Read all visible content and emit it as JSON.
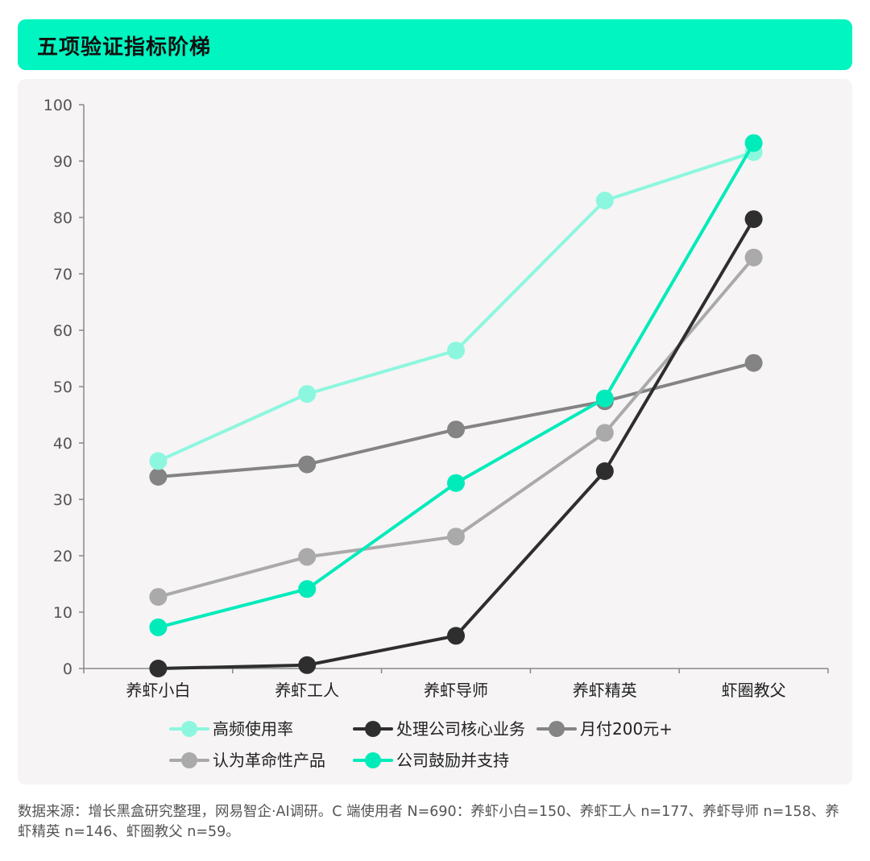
{
  "header": {
    "title": "五项验证指标阶梯"
  },
  "chart_data": {
    "type": "line",
    "categories": [
      "养虾小白",
      "养虾工人",
      "养虾导师",
      "养虾精英",
      "虾圈教父"
    ],
    "ylim": [
      0,
      100
    ],
    "yticks": [
      0,
      10,
      20,
      30,
      40,
      50,
      60,
      70,
      80,
      90,
      100
    ],
    "grid": false,
    "legend_position": "bottom",
    "series": [
      {
        "name": "高频使用率",
        "color": "#8cf7de",
        "values": [
          36.8,
          48.7,
          56.4,
          83.0,
          91.6
        ]
      },
      {
        "name": "处理公司核心业务",
        "color": "#2e2e2e",
        "values": [
          0,
          0.6,
          5.8,
          35.0,
          79.7
        ]
      },
      {
        "name": "月付200元+",
        "color": "#848484",
        "values": [
          34.0,
          36.2,
          42.4,
          47.4,
          54.2
        ]
      },
      {
        "name": "认为革命性产品",
        "color": "#aaaaaa",
        "values": [
          12.7,
          19.8,
          23.4,
          41.8,
          72.9
        ]
      },
      {
        "name": "公司鼓励并支持",
        "color": "#00ebba",
        "values": [
          7.3,
          14.1,
          32.9,
          47.9,
          93.2
        ]
      }
    ],
    "draw_order": [
      2,
      3,
      1,
      0,
      4
    ]
  },
  "footer": {
    "source": "数据来源：增长黑盒研究整理，网易智企·AI调研。C 端使用者 N=690：养虾小白=150、养虾工人 n=177、养虾导师 n=158、养虾精英 n=146、虾圈教父 n=59。"
  }
}
